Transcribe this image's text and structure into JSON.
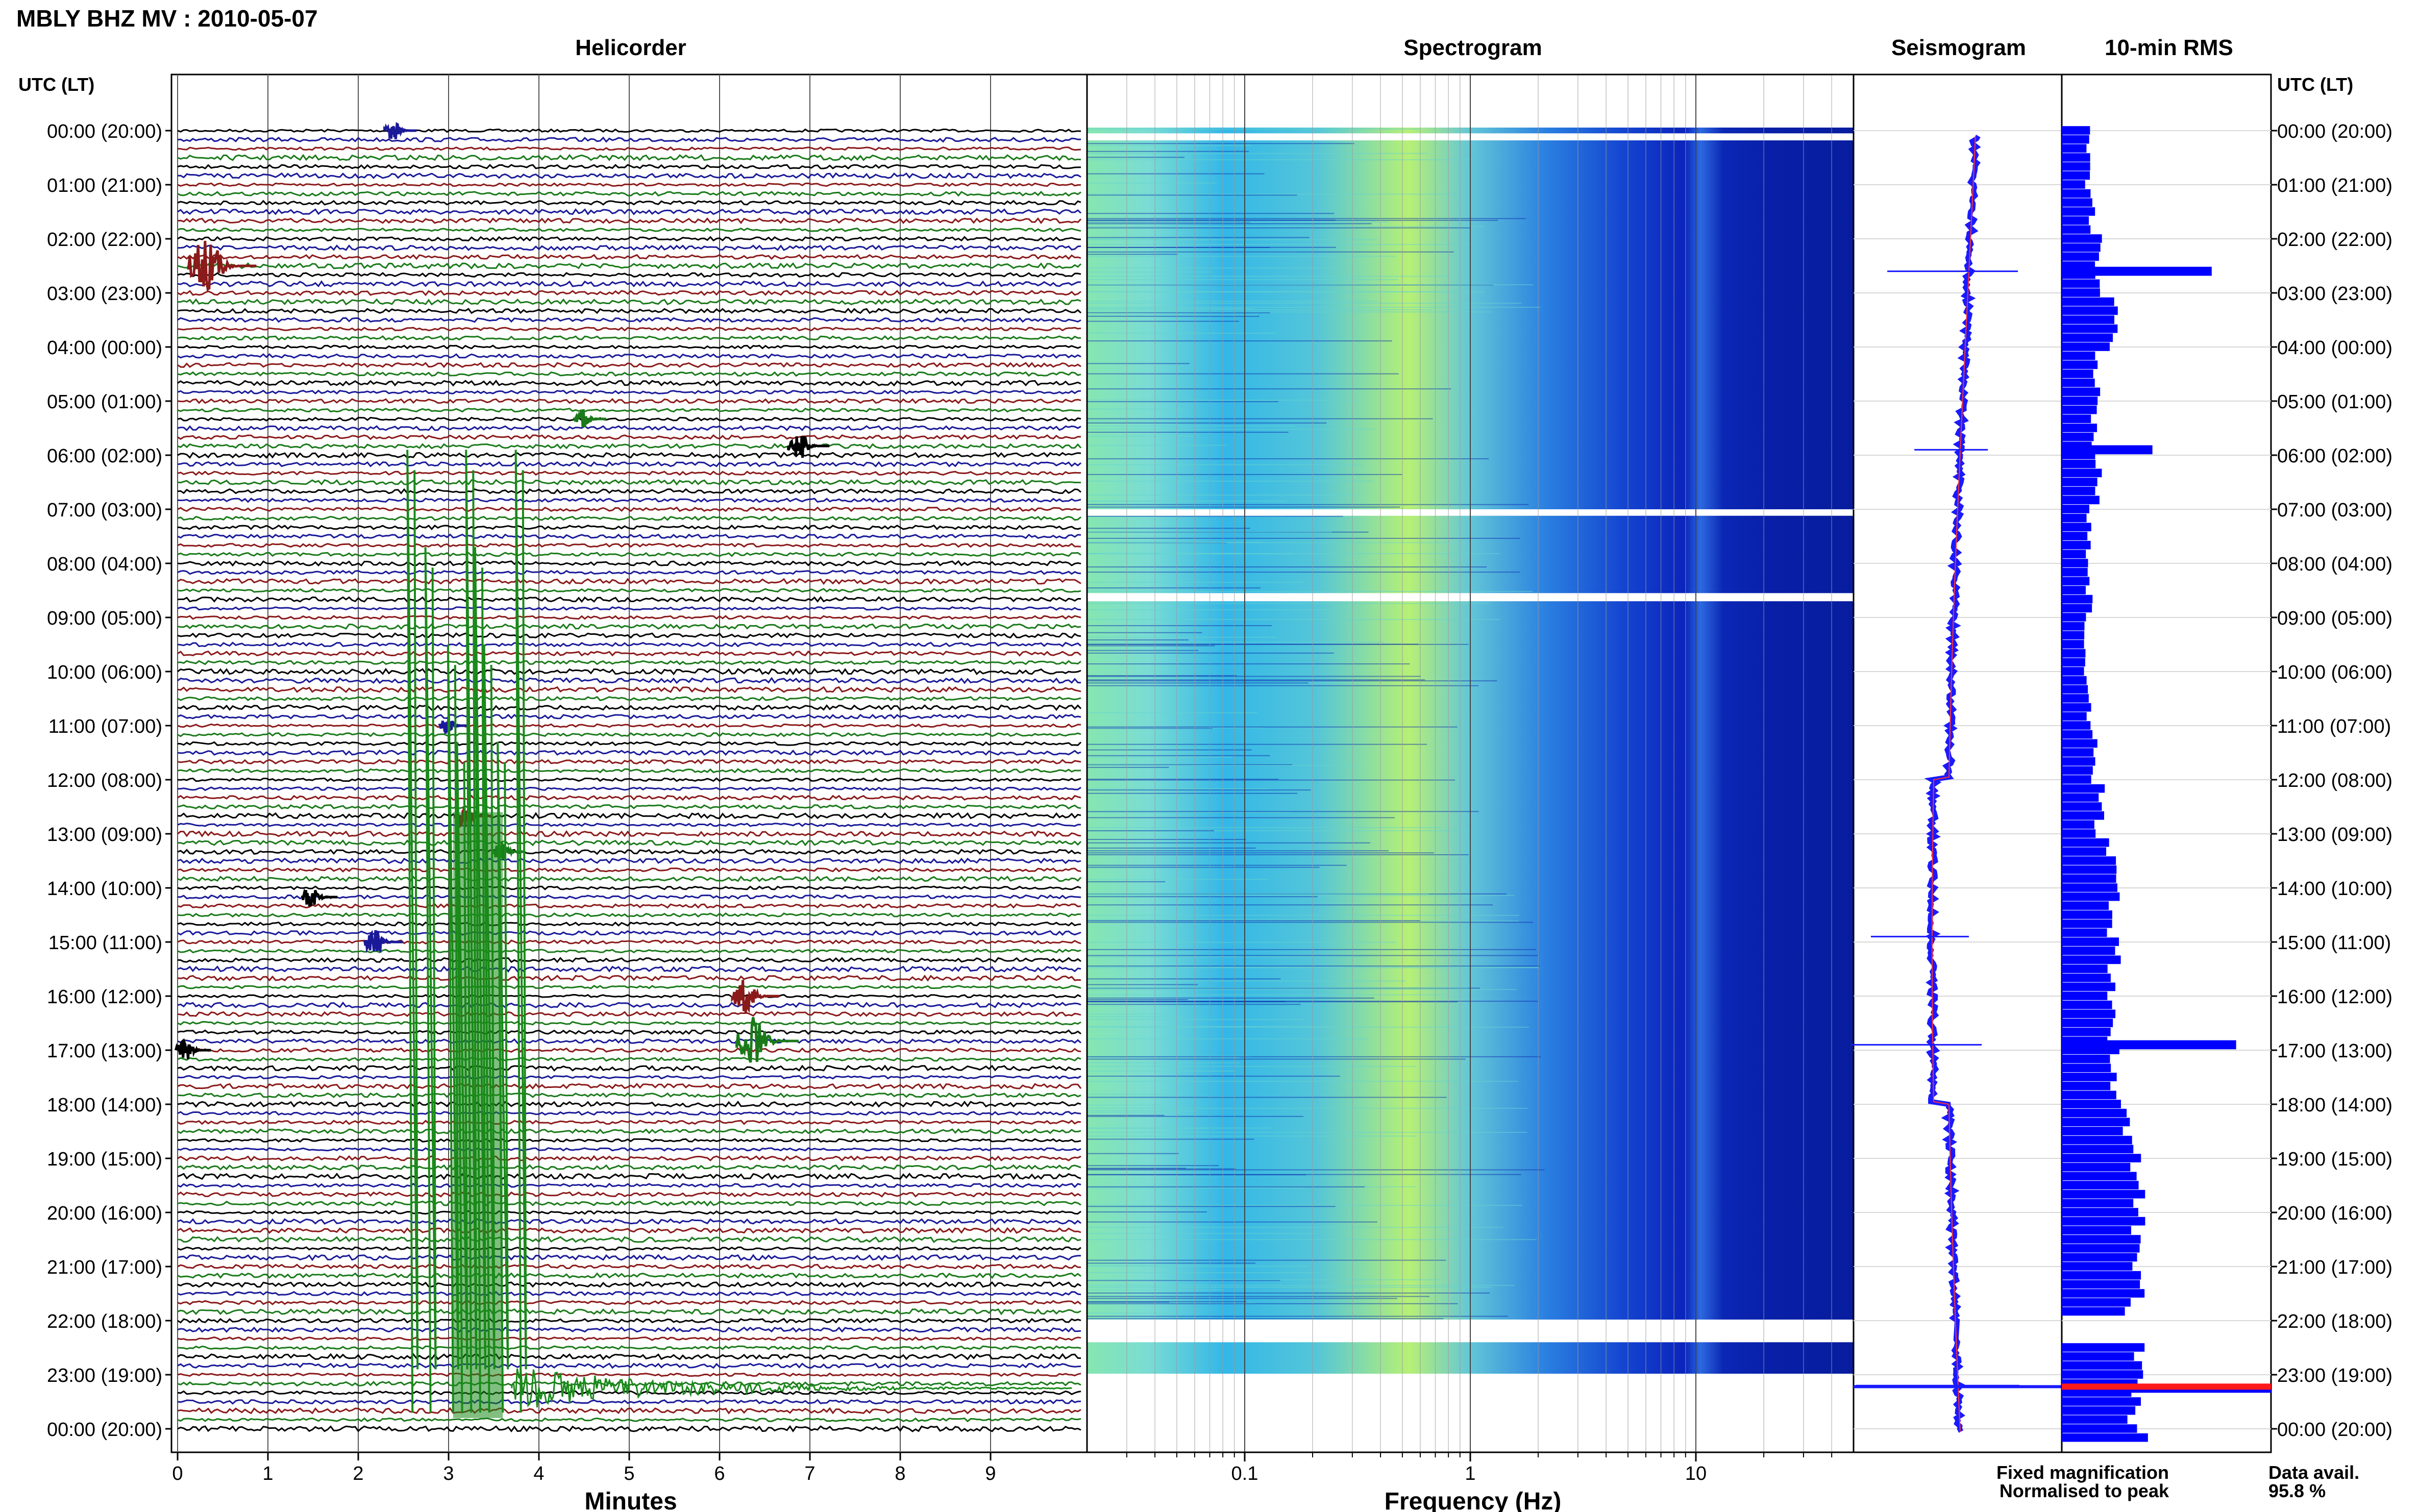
{
  "title": "MBLY BHZ MV : 2010-05-07",
  "utc_header": "UTC (LT)",
  "panels": {
    "helicorder": "Helicorder",
    "spectrogram": "Spectrogram",
    "seismogram": "Seismogram",
    "rms": "10-min RMS"
  },
  "xlabels": {
    "minutes": "Minutes",
    "frequency": "Frequency (Hz)"
  },
  "legend": {
    "fixed": "Fixed magnification",
    "normalised": "Normalised to peak",
    "fixed_color": "#1a1aff",
    "normalised_color": "#ff1a1a"
  },
  "data_avail": {
    "label": "Data avail.",
    "value": "95.8 %"
  },
  "colors": {
    "trace_cycle": [
      "#000000",
      "#1a1a99",
      "#8b1a1a",
      "#1a7a1a"
    ],
    "rms_bar": "#0000ff",
    "spec_low": "#0000aa",
    "spec_high": "#c8f060"
  },
  "chart_data": {
    "type": "heatmap",
    "hour_labels": [
      "00:00 (20:00)",
      "01:00 (21:00)",
      "02:00 (22:00)",
      "03:00 (23:00)",
      "04:00 (00:00)",
      "05:00 (01:00)",
      "06:00 (02:00)",
      "07:00 (03:00)",
      "08:00 (04:00)",
      "09:00 (05:00)",
      "10:00 (06:00)",
      "11:00 (07:00)",
      "12:00 (08:00)",
      "13:00 (09:00)",
      "14:00 (10:00)",
      "15:00 (11:00)",
      "16:00 (12:00)",
      "17:00 (13:00)",
      "18:00 (14:00)",
      "19:00 (15:00)",
      "20:00 (16:00)",
      "21:00 (17:00)",
      "22:00 (18:00)",
      "23:00 (19:00)",
      "00:00 (20:00)"
    ],
    "minute_ticks": [
      "0",
      "1",
      "2",
      "3",
      "4",
      "5",
      "6",
      "7",
      "8",
      "9"
    ],
    "minute_range": [
      0,
      10
    ],
    "freq_range_hz": [
      0.02,
      50
    ],
    "freq_ticks": [
      {
        "value": 0.1,
        "label": "0.1"
      },
      {
        "value": 1,
        "label": "1"
      },
      {
        "value": 10,
        "label": "10"
      }
    ],
    "helicorder_lines_per_hour": 6,
    "spectrogram_gaps_hour": [
      0.2,
      7.05,
      8.6,
      22.1,
      23.0,
      23.8
    ],
    "helicorder_events": [
      {
        "hour": 0.0,
        "minute": 2.4,
        "amp": 0.4
      },
      {
        "hour": 2.5,
        "minute": 0.35,
        "amp": 1.6
      },
      {
        "hour": 5.33,
        "minute": 4.5,
        "amp": 0.4
      },
      {
        "hour": 5.83,
        "minute": 6.9,
        "amp": 0.7
      },
      {
        "hour": 11.0,
        "minute": 3.0,
        "amp": 0.3
      },
      {
        "hour": 12.67,
        "minute": 3.2,
        "amp": 0.6
      },
      {
        "hour": 13.33,
        "minute": 3.6,
        "amp": 0.4
      },
      {
        "hour": 14.17,
        "minute": 1.5,
        "amp": 0.5
      },
      {
        "hour": 15.0,
        "minute": 2.2,
        "amp": 0.6
      },
      {
        "hour": 16.0,
        "minute": 6.3,
        "amp": 0.9
      },
      {
        "hour": 16.83,
        "minute": 6.4,
        "amp": 1.4
      },
      {
        "hour": 17.0,
        "minute": 0.1,
        "amp": 0.5
      }
    ],
    "rms_by_hour": [
      0.15,
      0.18,
      0.22,
      0.28,
      0.2,
      0.18,
      0.2,
      0.16,
      0.16,
      0.14,
      0.15,
      0.18,
      0.22,
      0.28,
      0.3,
      0.3,
      0.3,
      0.3,
      0.4,
      0.42,
      0.42,
      0.42,
      0.45,
      0.42,
      0.5
    ],
    "rms_spikes": [
      {
        "hour": 2.6,
        "value": 0.86
      },
      {
        "hour": 5.9,
        "value": 0.52
      },
      {
        "hour": 16.9,
        "value": 1.0
      },
      {
        "hour": 23.25,
        "value": 1.2
      }
    ]
  }
}
